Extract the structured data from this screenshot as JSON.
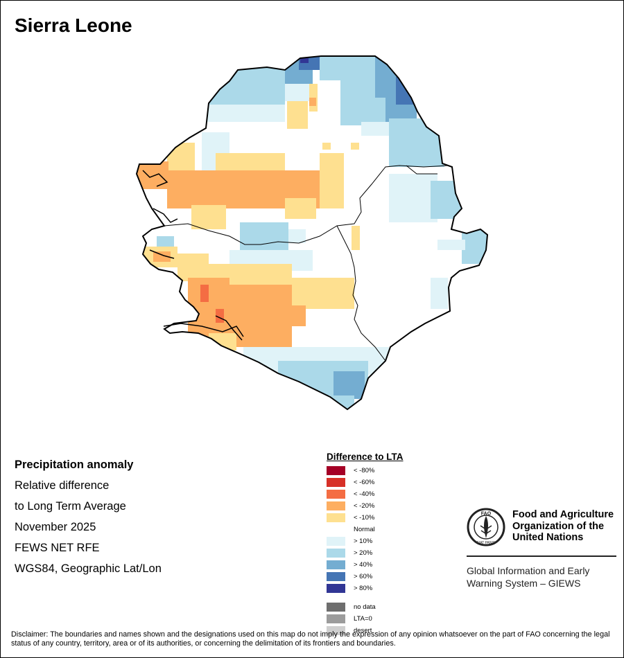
{
  "map": {
    "title": "Sierra Leone",
    "subject": "Precipitation anomaly",
    "description_line1": "Relative difference",
    "description_line2": "to Long Term Average",
    "period": "November 2025",
    "source": "FEWS NET RFE",
    "projection": "WGS84, Geographic Lat/Lon"
  },
  "legend": {
    "title": "Difference to LTA",
    "negative": [
      {
        "label": "< -80%",
        "color": "#a50026"
      },
      {
        "label": "< -60%",
        "color": "#d73027"
      },
      {
        "label": "< -40%",
        "color": "#f46d43"
      },
      {
        "label": "< -20%",
        "color": "#fdae61"
      },
      {
        "label": "< -10%",
        "color": "#fee090"
      }
    ],
    "normal_label": "Normal",
    "positive": [
      {
        "label": "> 10%",
        "color": "#e0f3f8"
      },
      {
        "label": "> 20%",
        "color": "#abd9e9"
      },
      {
        "label": "> 40%",
        "color": "#74add1"
      },
      {
        "label": "> 60%",
        "color": "#4575b4"
      },
      {
        "label": "> 80%",
        "color": "#313695"
      }
    ],
    "special": [
      {
        "label": "no data",
        "color": "#6e6e6e"
      },
      {
        "label": "LTA=0",
        "color": "#9c9c9c"
      },
      {
        "label": "desert",
        "color": "#cfcfcf"
      }
    ]
  },
  "organization": {
    "name": "Food and Agriculture Organization of the United Nations",
    "logo_text": "FAO",
    "logo_motto": "FIAT PANIS",
    "system_name": "Global Information and Early Warning System – GIEWS"
  },
  "disclaimer": "Disclaimer: The boundaries and names shown and the designations used on this map do not imply the expression of any opinion whatsoever on the part of FAO concerning the legal status of any country, territory, area or of its authorities, or concerning the delimitation of its frontiers and boundaries."
}
